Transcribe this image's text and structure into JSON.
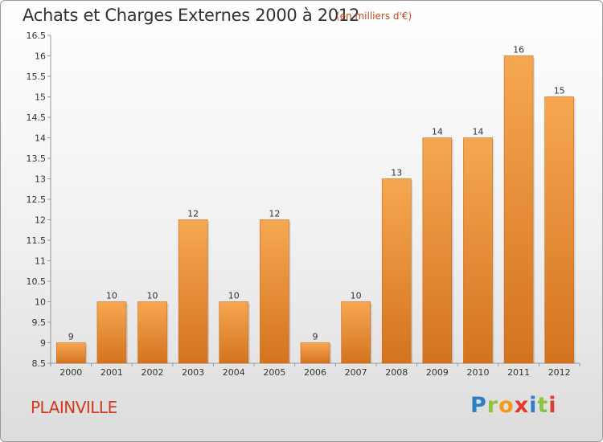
{
  "header": {
    "title": "Achats et Charges Externes 2000 à 2012",
    "subtitle": "(en milliers d'€)"
  },
  "footer": {
    "commune": "PLAINVILLE",
    "brand": [
      "P",
      "r",
      "o",
      "x",
      "i",
      "t",
      "i"
    ],
    "brand_colors": [
      "#2f7fc8",
      "#8bc43f",
      "#f39a1e",
      "#e23b2e",
      "#2f7fc8",
      "#8bc43f",
      "#e23b2e"
    ]
  },
  "colors": {
    "bar_top": "#f7a751",
    "bar_bottom": "#d3731f",
    "bar_edge": "#c8691b",
    "axis": "#999999",
    "grid": "#d8d8d8"
  },
  "chart_data": {
    "type": "bar",
    "title": "Achats et Charges Externes 2000 à 2012",
    "subtitle": "(en milliers d'€)",
    "categories": [
      "2000",
      "2001",
      "2002",
      "2003",
      "2004",
      "2005",
      "2006",
      "2007",
      "2008",
      "2009",
      "2010",
      "2011",
      "2012"
    ],
    "values": [
      9,
      10,
      10,
      12,
      10,
      12,
      9,
      10,
      13,
      14,
      14,
      16,
      15
    ],
    "value_labels": [
      "9",
      "10",
      "10",
      "12",
      "10",
      "12",
      "9",
      "10",
      "13",
      "14",
      "14",
      "16",
      "15"
    ],
    "ylim": [
      8.5,
      16.5
    ],
    "yticks": [
      "8.5",
      "9",
      "9.5",
      "10",
      "10.5",
      "11",
      "11.5",
      "12",
      "12.5",
      "13",
      "13.5",
      "14",
      "14.5",
      "15",
      "15.5",
      "16",
      "16.5"
    ],
    "grid": false,
    "legend": "none"
  }
}
